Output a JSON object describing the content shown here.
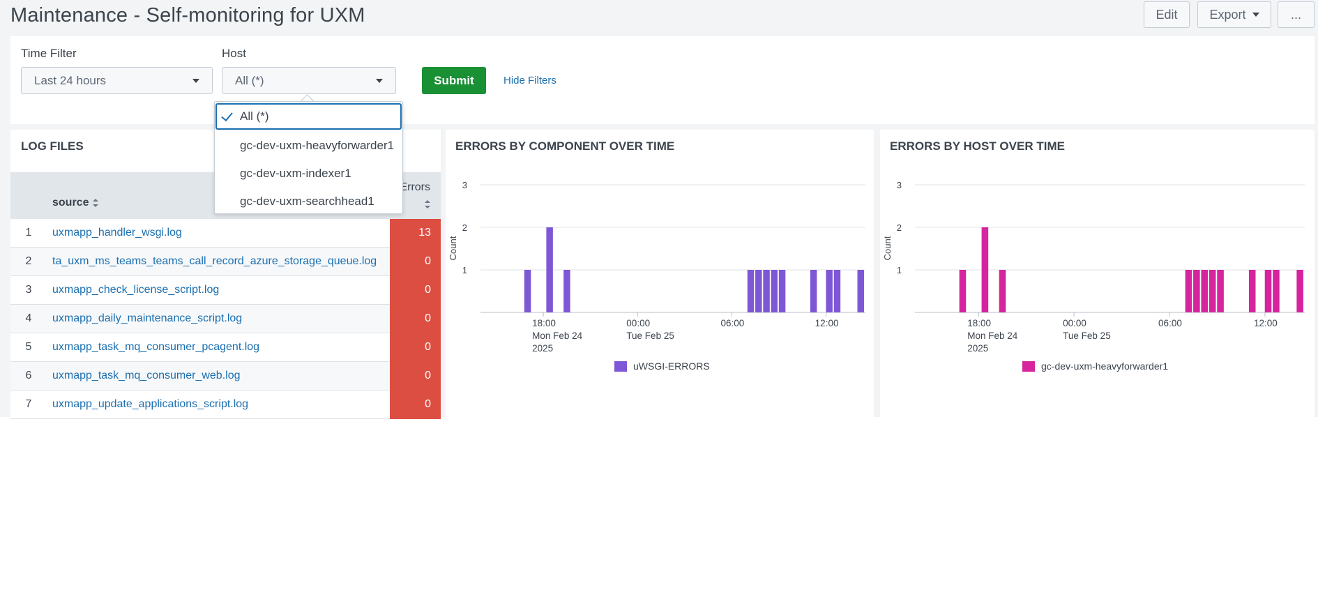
{
  "header": {
    "title": "Maintenance - Self-monitoring for UXM",
    "edit_label": "Edit",
    "export_label": "Export",
    "more_label": "..."
  },
  "filters": {
    "time_label": "Time Filter",
    "time_value": "Last 24 hours",
    "host_label": "Host",
    "host_value": "All (*)",
    "submit_label": "Submit",
    "hide_filters_label": "Hide Filters",
    "host_options": [
      {
        "label": "All (*)",
        "selected": true
      },
      {
        "label": "gc-dev-uxm-heavyforwarder1",
        "selected": false
      },
      {
        "label": "gc-dev-uxm-indexer1",
        "selected": false
      },
      {
        "label": "gc-dev-uxm-searchhead1",
        "selected": false
      }
    ]
  },
  "log_files": {
    "title": "LOG FILES",
    "col_source": "source",
    "col_errors": "Errors",
    "rows": [
      {
        "num": "1",
        "source": "uxmapp_handler_wsgi.log",
        "errors": "13"
      },
      {
        "num": "2",
        "source": "ta_uxm_ms_teams_teams_call_record_azure_storage_queue.log",
        "errors": "0"
      },
      {
        "num": "3",
        "source": "uxmapp_check_license_script.log",
        "errors": "0"
      },
      {
        "num": "4",
        "source": "uxmapp_daily_maintenance_script.log",
        "errors": "0"
      },
      {
        "num": "5",
        "source": "uxmapp_task_mq_consumer_pcagent.log",
        "errors": "0"
      },
      {
        "num": "6",
        "source": "uxmapp_task_mq_consumer_web.log",
        "errors": "0"
      },
      {
        "num": "7",
        "source": "uxmapp_update_applications_script.log",
        "errors": "0"
      }
    ]
  },
  "chart_data": [
    {
      "type": "bar",
      "title": "ERRORS BY COMPONENT OVER TIME",
      "ylabel": "Count",
      "ylim": [
        0,
        3
      ],
      "yticks": [
        "1",
        "2",
        "3"
      ],
      "xticks": [
        {
          "lines": [
            "18:00",
            "Mon Feb 24",
            "2025"
          ],
          "hour": 18
        },
        {
          "lines": [
            "00:00",
            "Tue Feb 25"
          ],
          "hour": 24
        },
        {
          "lines": [
            "06:00"
          ],
          "hour": 30
        },
        {
          "lines": [
            "12:00"
          ],
          "hour": 36
        }
      ],
      "xlim_hours": [
        14.0,
        38.5
      ],
      "bar_width_hours": 0.42,
      "series": [
        {
          "name": "uWSGI-ERRORS",
          "color": "#7e57d6",
          "points": [
            {
              "hour": 17.0,
              "value": 1
            },
            {
              "hour": 18.4,
              "value": 2
            },
            {
              "hour": 19.5,
              "value": 1
            },
            {
              "hour": 31.2,
              "value": 1
            },
            {
              "hour": 31.7,
              "value": 1
            },
            {
              "hour": 32.2,
              "value": 1
            },
            {
              "hour": 32.7,
              "value": 1
            },
            {
              "hour": 33.2,
              "value": 1
            },
            {
              "hour": 35.2,
              "value": 1
            },
            {
              "hour": 36.2,
              "value": 1
            },
            {
              "hour": 36.7,
              "value": 1
            },
            {
              "hour": 38.2,
              "value": 1
            }
          ]
        }
      ]
    },
    {
      "type": "bar",
      "title": "ERRORS BY HOST OVER TIME",
      "ylabel": "Count",
      "ylim": [
        0,
        3
      ],
      "yticks": [
        "1",
        "2",
        "3"
      ],
      "xticks": [
        {
          "lines": [
            "18:00",
            "Mon Feb 24",
            "2025"
          ],
          "hour": 18
        },
        {
          "lines": [
            "00:00",
            "Tue Feb 25"
          ],
          "hour": 24
        },
        {
          "lines": [
            "06:00"
          ],
          "hour": 30
        },
        {
          "lines": [
            "12:00"
          ],
          "hour": 36
        }
      ],
      "xlim_hours": [
        14.0,
        38.5
      ],
      "bar_width_hours": 0.42,
      "series": [
        {
          "name": "gc-dev-uxm-heavyforwarder1",
          "color": "#d6249f",
          "points": [
            {
              "hour": 17.0,
              "value": 1
            },
            {
              "hour": 18.4,
              "value": 2
            },
            {
              "hour": 19.5,
              "value": 1
            },
            {
              "hour": 31.2,
              "value": 1
            },
            {
              "hour": 31.7,
              "value": 1
            },
            {
              "hour": 32.2,
              "value": 1
            },
            {
              "hour": 32.7,
              "value": 1
            },
            {
              "hour": 33.2,
              "value": 1
            },
            {
              "hour": 35.2,
              "value": 1
            },
            {
              "hour": 36.2,
              "value": 1
            },
            {
              "hour": 36.7,
              "value": 1
            },
            {
              "hour": 38.2,
              "value": 1
            }
          ]
        }
      ]
    }
  ]
}
